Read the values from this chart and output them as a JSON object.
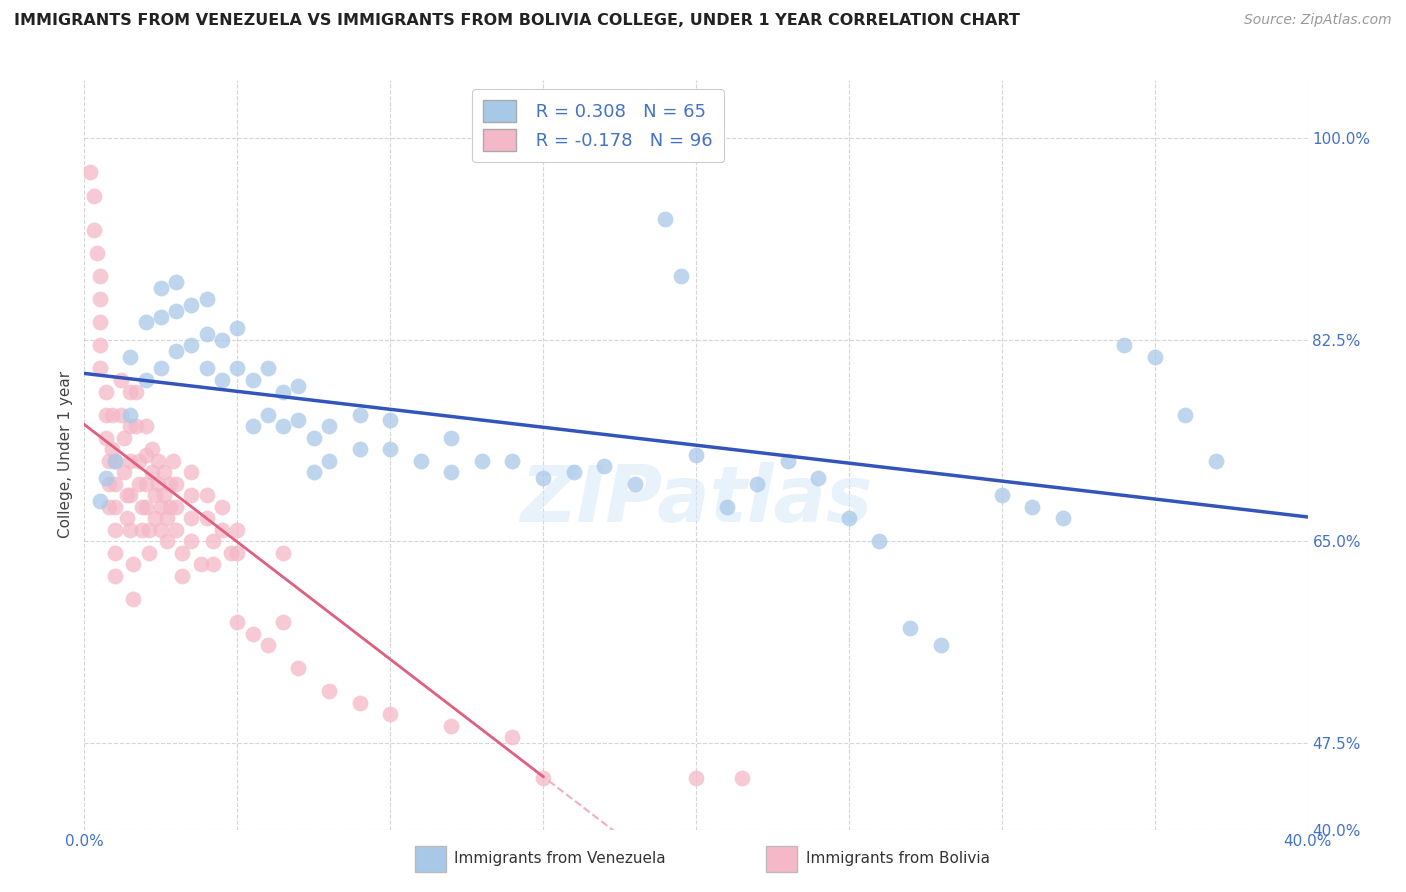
{
  "title": "IMMIGRANTS FROM VENEZUELA VS IMMIGRANTS FROM BOLIVIA COLLEGE, UNDER 1 YEAR CORRELATION CHART",
  "source": "Source: ZipAtlas.com",
  "ylabel": "College, Under 1 year",
  "xlim": [
    0.0,
    0.4
  ],
  "ylim": [
    0.4,
    1.05
  ],
  "xticks": [
    0.0,
    0.05,
    0.1,
    0.15,
    0.2,
    0.25,
    0.3,
    0.35,
    0.4
  ],
  "xtick_labels": [
    "0.0%",
    "",
    "",
    "",
    "",
    "",
    "",
    "",
    "40.0%"
  ],
  "ytick_positions": [
    0.4,
    0.475,
    0.65,
    0.825,
    1.0
  ],
  "ytick_labels": [
    "40.0%",
    "47.5%",
    "65.0%",
    "82.5%",
    "100.0%"
  ],
  "R_venezuela": 0.308,
  "N_venezuela": 65,
  "R_bolivia": -0.178,
  "N_bolivia": 96,
  "venezuela_color": "#a8c8e8",
  "bolivia_color": "#f4b8c8",
  "venezuela_line_color": "#3355bb",
  "bolivia_solid_line_color": "#e06080",
  "bolivia_dash_line_color": "#f0b0c0",
  "watermark": "ZIPatlas",
  "legend_label_venezuela": "Immigrants from Venezuela",
  "legend_label_bolivia": "Immigrants from Bolivia",
  "venezuela_scatter": [
    [
      0.005,
      0.685
    ],
    [
      0.007,
      0.705
    ],
    [
      0.01,
      0.72
    ],
    [
      0.015,
      0.76
    ],
    [
      0.015,
      0.81
    ],
    [
      0.02,
      0.79
    ],
    [
      0.02,
      0.84
    ],
    [
      0.025,
      0.8
    ],
    [
      0.025,
      0.845
    ],
    [
      0.025,
      0.87
    ],
    [
      0.03,
      0.815
    ],
    [
      0.03,
      0.85
    ],
    [
      0.03,
      0.875
    ],
    [
      0.035,
      0.82
    ],
    [
      0.035,
      0.855
    ],
    [
      0.04,
      0.8
    ],
    [
      0.04,
      0.83
    ],
    [
      0.04,
      0.86
    ],
    [
      0.045,
      0.79
    ],
    [
      0.045,
      0.825
    ],
    [
      0.05,
      0.8
    ],
    [
      0.05,
      0.835
    ],
    [
      0.055,
      0.75
    ],
    [
      0.055,
      0.79
    ],
    [
      0.06,
      0.76
    ],
    [
      0.06,
      0.8
    ],
    [
      0.065,
      0.75
    ],
    [
      0.065,
      0.78
    ],
    [
      0.07,
      0.755
    ],
    [
      0.07,
      0.785
    ],
    [
      0.075,
      0.71
    ],
    [
      0.075,
      0.74
    ],
    [
      0.08,
      0.72
    ],
    [
      0.08,
      0.75
    ],
    [
      0.09,
      0.73
    ],
    [
      0.09,
      0.76
    ],
    [
      0.1,
      0.73
    ],
    [
      0.1,
      0.755
    ],
    [
      0.11,
      0.72
    ],
    [
      0.12,
      0.71
    ],
    [
      0.12,
      0.74
    ],
    [
      0.13,
      0.72
    ],
    [
      0.14,
      0.72
    ],
    [
      0.15,
      0.705
    ],
    [
      0.16,
      0.71
    ],
    [
      0.17,
      0.715
    ],
    [
      0.18,
      0.7
    ],
    [
      0.19,
      0.93
    ],
    [
      0.195,
      0.88
    ],
    [
      0.2,
      0.725
    ],
    [
      0.21,
      0.68
    ],
    [
      0.22,
      0.7
    ],
    [
      0.23,
      0.72
    ],
    [
      0.24,
      0.705
    ],
    [
      0.25,
      0.67
    ],
    [
      0.26,
      0.65
    ],
    [
      0.27,
      0.575
    ],
    [
      0.28,
      0.56
    ],
    [
      0.3,
      0.69
    ],
    [
      0.31,
      0.68
    ],
    [
      0.32,
      0.67
    ],
    [
      0.34,
      0.82
    ],
    [
      0.35,
      0.81
    ],
    [
      0.36,
      0.76
    ],
    [
      0.37,
      0.72
    ]
  ],
  "bolivia_scatter": [
    [
      0.002,
      0.97
    ],
    [
      0.003,
      0.95
    ],
    [
      0.003,
      0.92
    ],
    [
      0.004,
      0.9
    ],
    [
      0.005,
      0.88
    ],
    [
      0.005,
      0.86
    ],
    [
      0.005,
      0.84
    ],
    [
      0.005,
      0.82
    ],
    [
      0.005,
      0.8
    ],
    [
      0.007,
      0.78
    ],
    [
      0.007,
      0.76
    ],
    [
      0.007,
      0.74
    ],
    [
      0.008,
      0.72
    ],
    [
      0.008,
      0.7
    ],
    [
      0.008,
      0.68
    ],
    [
      0.009,
      0.76
    ],
    [
      0.009,
      0.73
    ],
    [
      0.01,
      0.7
    ],
    [
      0.01,
      0.72
    ],
    [
      0.01,
      0.68
    ],
    [
      0.01,
      0.66
    ],
    [
      0.01,
      0.64
    ],
    [
      0.01,
      0.62
    ],
    [
      0.012,
      0.79
    ],
    [
      0.012,
      0.76
    ],
    [
      0.013,
      0.74
    ],
    [
      0.013,
      0.71
    ],
    [
      0.014,
      0.69
    ],
    [
      0.014,
      0.67
    ],
    [
      0.015,
      0.78
    ],
    [
      0.015,
      0.75
    ],
    [
      0.015,
      0.72
    ],
    [
      0.015,
      0.69
    ],
    [
      0.015,
      0.66
    ],
    [
      0.016,
      0.63
    ],
    [
      0.016,
      0.6
    ],
    [
      0.017,
      0.78
    ],
    [
      0.017,
      0.75
    ],
    [
      0.018,
      0.72
    ],
    [
      0.018,
      0.7
    ],
    [
      0.019,
      0.68
    ],
    [
      0.019,
      0.66
    ],
    [
      0.02,
      0.75
    ],
    [
      0.02,
      0.725
    ],
    [
      0.02,
      0.7
    ],
    [
      0.02,
      0.68
    ],
    [
      0.021,
      0.66
    ],
    [
      0.021,
      0.64
    ],
    [
      0.022,
      0.73
    ],
    [
      0.022,
      0.71
    ],
    [
      0.023,
      0.69
    ],
    [
      0.023,
      0.67
    ],
    [
      0.024,
      0.72
    ],
    [
      0.024,
      0.7
    ],
    [
      0.025,
      0.68
    ],
    [
      0.025,
      0.66
    ],
    [
      0.026,
      0.71
    ],
    [
      0.026,
      0.69
    ],
    [
      0.027,
      0.67
    ],
    [
      0.027,
      0.65
    ],
    [
      0.028,
      0.7
    ],
    [
      0.028,
      0.68
    ],
    [
      0.029,
      0.72
    ],
    [
      0.03,
      0.7
    ],
    [
      0.03,
      0.68
    ],
    [
      0.03,
      0.66
    ],
    [
      0.032,
      0.64
    ],
    [
      0.032,
      0.62
    ],
    [
      0.035,
      0.71
    ],
    [
      0.035,
      0.69
    ],
    [
      0.035,
      0.67
    ],
    [
      0.035,
      0.65
    ],
    [
      0.038,
      0.63
    ],
    [
      0.04,
      0.69
    ],
    [
      0.04,
      0.67
    ],
    [
      0.042,
      0.65
    ],
    [
      0.042,
      0.63
    ],
    [
      0.045,
      0.68
    ],
    [
      0.045,
      0.66
    ],
    [
      0.048,
      0.64
    ],
    [
      0.05,
      0.66
    ],
    [
      0.05,
      0.64
    ],
    [
      0.05,
      0.58
    ],
    [
      0.055,
      0.57
    ],
    [
      0.06,
      0.56
    ],
    [
      0.065,
      0.64
    ],
    [
      0.065,
      0.58
    ],
    [
      0.07,
      0.54
    ],
    [
      0.08,
      0.52
    ],
    [
      0.09,
      0.51
    ],
    [
      0.1,
      0.5
    ],
    [
      0.12,
      0.49
    ],
    [
      0.14,
      0.48
    ],
    [
      0.15,
      0.445
    ],
    [
      0.2,
      0.445
    ],
    [
      0.215,
      0.445
    ]
  ]
}
